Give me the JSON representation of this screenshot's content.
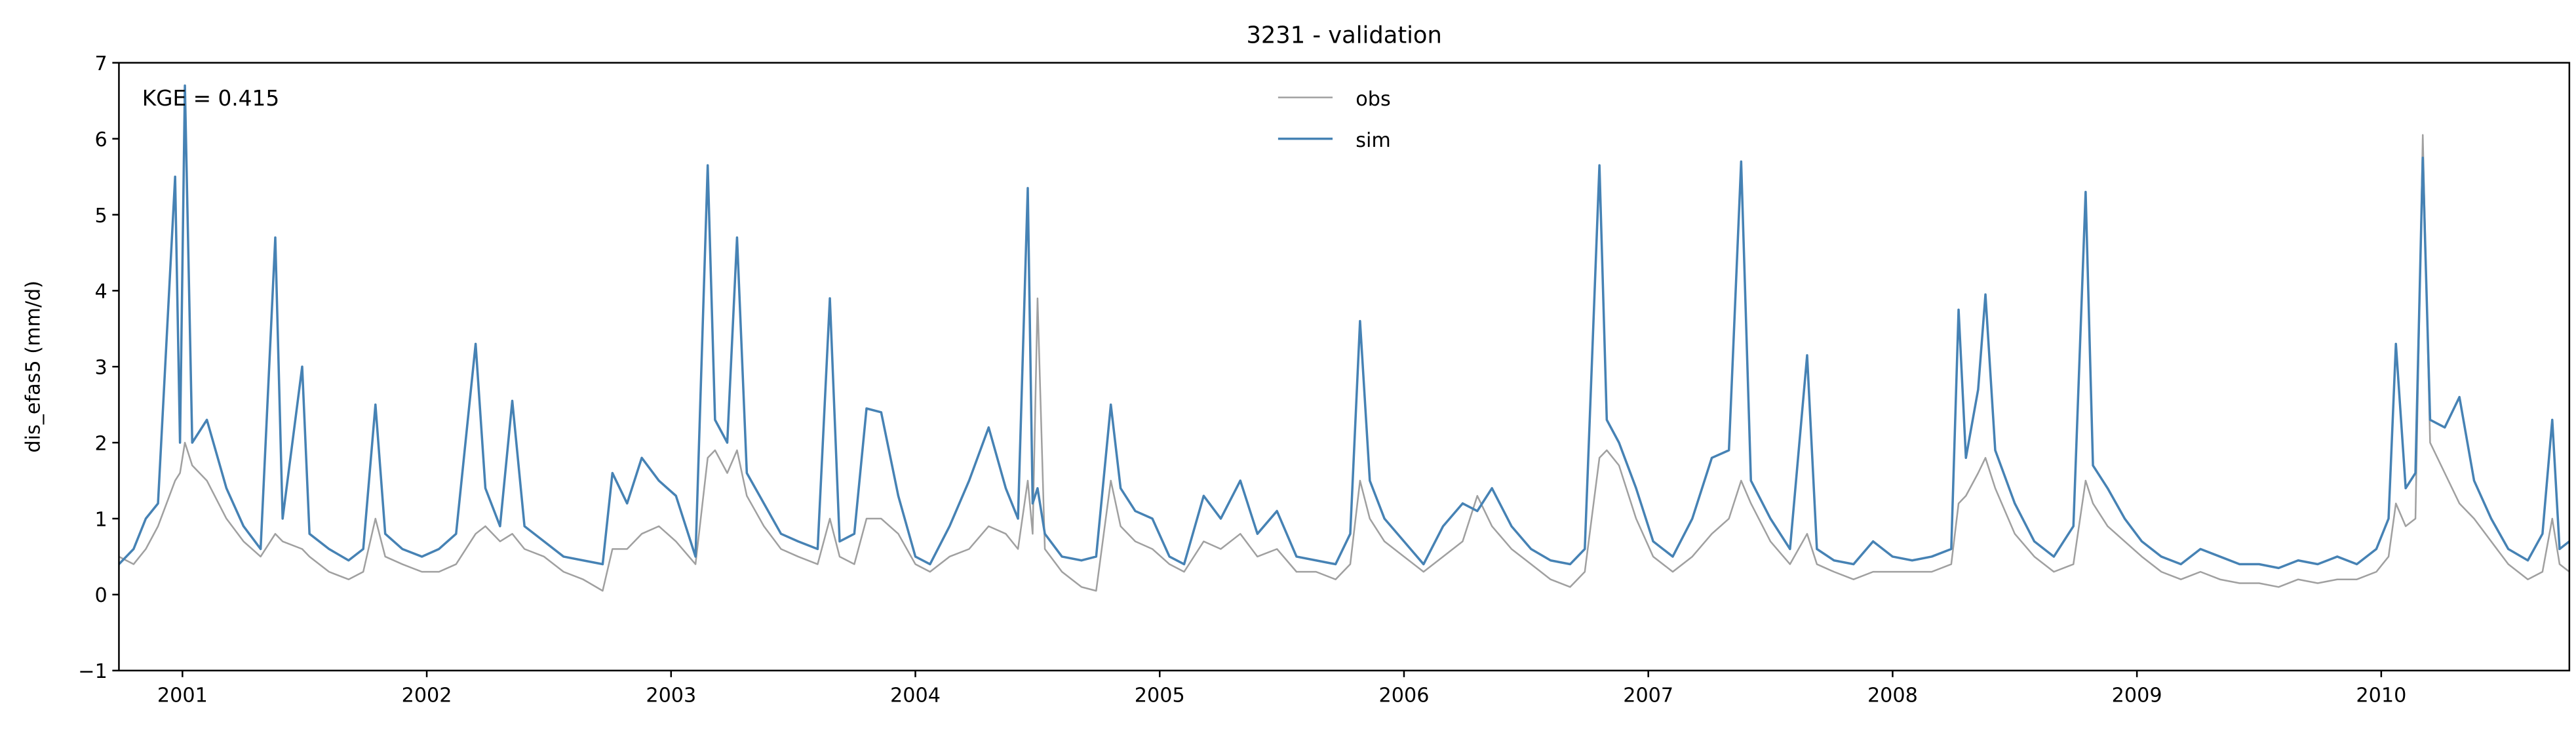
{
  "chart_data": {
    "type": "line",
    "title": "3231 - validation",
    "ylabel": "dis_efas5 (mm/d)",
    "annotation": "KGE = 0.415",
    "legend": "upper center",
    "xlim": [
      2000.74,
      2010.77
    ],
    "xticks": [
      2001,
      2002,
      2003,
      2004,
      2005,
      2006,
      2007,
      2008,
      2009,
      2010
    ],
    "ylim": [
      -1,
      7
    ],
    "yticks": [
      {
        "value": -1,
        "label": "−1"
      },
      0,
      1,
      2,
      3,
      4,
      5,
      6,
      7
    ],
    "x": [
      2000.74,
      2000.8,
      2000.85,
      2000.9,
      2000.97,
      2000.99,
      2001.01,
      2001.04,
      2001.1,
      2001.18,
      2001.25,
      2001.32,
      2001.38,
      2001.41,
      2001.49,
      2001.52,
      2001.6,
      2001.68,
      2001.74,
      2001.79,
      2001.83,
      2001.9,
      2001.98,
      2002.05,
      2002.12,
      2002.2,
      2002.24,
      2002.3,
      2002.35,
      2002.4,
      2002.48,
      2002.56,
      2002.64,
      2002.72,
      2002.76,
      2002.82,
      2002.88,
      2002.95,
      2003.02,
      2003.1,
      2003.15,
      2003.18,
      2003.23,
      2003.27,
      2003.31,
      2003.38,
      2003.45,
      2003.52,
      2003.6,
      2003.65,
      2003.69,
      2003.75,
      2003.8,
      2003.86,
      2003.93,
      2004.0,
      2004.06,
      2004.14,
      2004.22,
      2004.3,
      2004.37,
      2004.42,
      2004.46,
      2004.48,
      2004.5,
      2004.53,
      2004.6,
      2004.68,
      2004.74,
      2004.8,
      2004.84,
      2004.9,
      2004.97,
      2005.04,
      2005.1,
      2005.18,
      2005.25,
      2005.33,
      2005.4,
      2005.48,
      2005.56,
      2005.64,
      2005.72,
      2005.78,
      2005.82,
      2005.86,
      2005.92,
      2006.0,
      2006.08,
      2006.16,
      2006.24,
      2006.3,
      2006.36,
      2006.44,
      2006.52,
      2006.6,
      2006.68,
      2006.74,
      2006.8,
      2006.83,
      2006.88,
      2006.95,
      2007.02,
      2007.1,
      2007.18,
      2007.26,
      2007.33,
      2007.38,
      2007.42,
      2007.5,
      2007.58,
      2007.65,
      2007.69,
      2007.76,
      2007.84,
      2007.92,
      2008.0,
      2008.08,
      2008.16,
      2008.24,
      2008.27,
      2008.3,
      2008.35,
      2008.38,
      2008.42,
      2008.5,
      2008.58,
      2008.66,
      2008.74,
      2008.79,
      2008.82,
      2008.88,
      2008.95,
      2009.02,
      2009.1,
      2009.18,
      2009.26,
      2009.34,
      2009.42,
      2009.5,
      2009.58,
      2009.66,
      2009.74,
      2009.82,
      2009.9,
      2009.98,
      2010.03,
      2010.06,
      2010.1,
      2010.14,
      2010.17,
      2010.2,
      2010.26,
      2010.32,
      2010.38,
      2010.45,
      2010.52,
      2010.6,
      2010.66,
      2010.7,
      2010.73,
      2010.77
    ],
    "series": [
      {
        "name": "obs",
        "color": "#a0a0a0",
        "values": [
          0.5,
          0.4,
          0.6,
          0.9,
          1.5,
          1.6,
          2.0,
          1.7,
          1.5,
          1.0,
          0.7,
          0.5,
          0.8,
          0.7,
          0.6,
          0.5,
          0.3,
          0.2,
          0.3,
          1.0,
          0.5,
          0.4,
          0.3,
          0.3,
          0.4,
          0.8,
          0.9,
          0.7,
          0.8,
          0.6,
          0.5,
          0.3,
          0.2,
          0.05,
          0.6,
          0.6,
          0.8,
          0.9,
          0.7,
          0.4,
          1.8,
          1.9,
          1.6,
          1.9,
          1.3,
          0.9,
          0.6,
          0.5,
          0.4,
          1.0,
          0.5,
          0.4,
          1.0,
          1.0,
          0.8,
          0.4,
          0.3,
          0.5,
          0.6,
          0.9,
          0.8,
          0.6,
          1.5,
          0.8,
          3.9,
          0.6,
          0.3,
          0.1,
          0.05,
          1.5,
          0.9,
          0.7,
          0.6,
          0.4,
          0.3,
          0.7,
          0.6,
          0.8,
          0.5,
          0.6,
          0.3,
          0.3,
          0.2,
          0.4,
          1.5,
          1.0,
          0.7,
          0.5,
          0.3,
          0.5,
          0.7,
          1.3,
          0.9,
          0.6,
          0.4,
          0.2,
          0.1,
          0.3,
          1.8,
          1.9,
          1.7,
          1.0,
          0.5,
          0.3,
          0.5,
          0.8,
          1.0,
          1.5,
          1.2,
          0.7,
          0.4,
          0.8,
          0.4,
          0.3,
          0.2,
          0.3,
          0.3,
          0.3,
          0.3,
          0.4,
          1.2,
          1.3,
          1.6,
          1.8,
          1.4,
          0.8,
          0.5,
          0.3,
          0.4,
          1.5,
          1.2,
          0.9,
          0.7,
          0.5,
          0.3,
          0.2,
          0.3,
          0.2,
          0.15,
          0.15,
          0.1,
          0.2,
          0.15,
          0.2,
          0.2,
          0.3,
          0.5,
          1.2,
          0.9,
          1.0,
          6.05,
          2.0,
          1.6,
          1.2,
          1.0,
          0.7,
          0.4,
          0.2,
          0.3,
          1.0,
          0.4,
          0.3
        ]
      },
      {
        "name": "sim",
        "color": "#4682b4",
        "values": [
          0.4,
          0.6,
          1.0,
          1.2,
          5.5,
          2.0,
          6.7,
          2.0,
          2.3,
          1.4,
          0.9,
          0.6,
          4.7,
          1.0,
          3.0,
          0.8,
          0.6,
          0.45,
          0.6,
          2.5,
          0.8,
          0.6,
          0.5,
          0.6,
          0.8,
          3.3,
          1.4,
          0.9,
          2.55,
          0.9,
          0.7,
          0.5,
          0.45,
          0.4,
          1.6,
          1.2,
          1.8,
          1.5,
          1.3,
          0.5,
          5.65,
          2.3,
          2.0,
          4.7,
          1.6,
          1.2,
          0.8,
          0.7,
          0.6,
          3.9,
          0.7,
          0.8,
          2.45,
          2.4,
          1.3,
          0.5,
          0.4,
          0.9,
          1.5,
          2.2,
          1.4,
          1.0,
          5.35,
          1.2,
          1.4,
          0.8,
          0.5,
          0.45,
          0.5,
          2.5,
          1.4,
          1.1,
          1.0,
          0.5,
          0.4,
          1.3,
          1.0,
          1.5,
          0.8,
          1.1,
          0.5,
          0.45,
          0.4,
          0.8,
          3.6,
          1.5,
          1.0,
          0.7,
          0.4,
          0.9,
          1.2,
          1.1,
          1.4,
          0.9,
          0.6,
          0.45,
          0.4,
          0.6,
          5.65,
          2.3,
          2.0,
          1.4,
          0.7,
          0.5,
          1.0,
          1.8,
          1.9,
          5.7,
          1.5,
          1.0,
          0.6,
          3.15,
          0.6,
          0.45,
          0.4,
          0.7,
          0.5,
          0.45,
          0.5,
          0.6,
          3.75,
          1.8,
          2.7,
          3.95,
          1.9,
          1.2,
          0.7,
          0.5,
          0.9,
          5.3,
          1.7,
          1.4,
          1.0,
          0.7,
          0.5,
          0.4,
          0.6,
          0.5,
          0.4,
          0.4,
          0.35,
          0.45,
          0.4,
          0.5,
          0.4,
          0.6,
          1.0,
          3.3,
          1.4,
          1.6,
          5.75,
          2.3,
          2.2,
          2.6,
          1.5,
          1.0,
          0.6,
          0.45,
          0.8,
          2.3,
          0.6,
          0.7
        ]
      }
    ]
  }
}
